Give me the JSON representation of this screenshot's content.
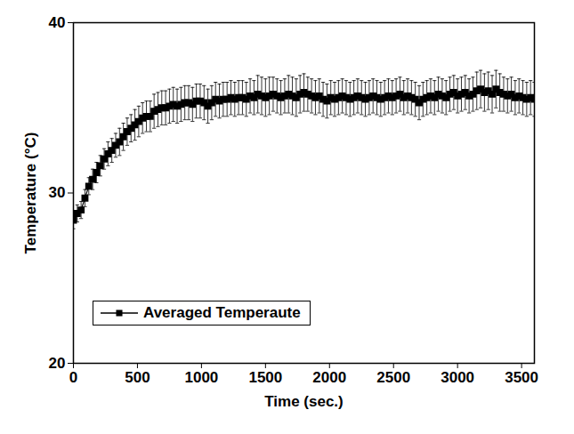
{
  "chart_data": {
    "type": "line",
    "x_label": "Time (sec.)",
    "y_label": "Temperature (°C)",
    "xlim": [
      0,
      3600
    ],
    "xticks": [
      0,
      500,
      1000,
      1500,
      2000,
      2500,
      3000,
      3500
    ],
    "ylim": [
      20,
      40
    ],
    "yticks": [
      20,
      30,
      40
    ],
    "grid": false,
    "legend": "lower left",
    "x": [
      0,
      30,
      60,
      90,
      120,
      150,
      180,
      210,
      240,
      270,
      300,
      330,
      360,
      390,
      420,
      450,
      480,
      510,
      540,
      570,
      600,
      630,
      660,
      690,
      720,
      750,
      780,
      810,
      840,
      870,
      900,
      930,
      960,
      990,
      1020,
      1050,
      1080,
      1110,
      1140,
      1170,
      1200,
      1230,
      1260,
      1290,
      1320,
      1350,
      1380,
      1410,
      1440,
      1470,
      1500,
      1530,
      1560,
      1590,
      1620,
      1650,
      1680,
      1710,
      1740,
      1770,
      1800,
      1830,
      1860,
      1890,
      1920,
      1950,
      1980,
      2010,
      2040,
      2070,
      2100,
      2130,
      2160,
      2190,
      2220,
      2250,
      2280,
      2310,
      2340,
      2370,
      2400,
      2430,
      2460,
      2490,
      2520,
      2550,
      2580,
      2610,
      2640,
      2670,
      2700,
      2730,
      2760,
      2790,
      2820,
      2850,
      2880,
      2910,
      2940,
      2970,
      3000,
      3030,
      3060,
      3090,
      3120,
      3150,
      3180,
      3210,
      3240,
      3270,
      3300,
      3330,
      3360,
      3390,
      3420,
      3450,
      3480,
      3510,
      3540,
      3570,
      3600
    ],
    "series": [
      {
        "name": "Averaged Temperaute",
        "color": "#000000",
        "marker": "square",
        "line_style": "solid",
        "values": [
          28.4,
          28.8,
          29.0,
          29.7,
          30.4,
          30.8,
          31.2,
          31.6,
          32.0,
          32.3,
          32.5,
          32.8,
          33.0,
          33.3,
          33.6,
          33.8,
          34.0,
          34.2,
          34.4,
          34.5,
          34.5,
          34.8,
          34.9,
          35.0,
          35.0,
          35.1,
          35.2,
          35.1,
          35.2,
          35.3,
          35.3,
          35.2,
          35.4,
          35.4,
          35.3,
          35.1,
          35.3,
          35.5,
          35.4,
          35.5,
          35.5,
          35.6,
          35.5,
          35.6,
          35.6,
          35.5,
          35.7,
          35.6,
          35.8,
          35.7,
          35.6,
          35.7,
          35.8,
          35.7,
          35.6,
          35.7,
          35.8,
          35.7,
          35.6,
          35.8,
          35.9,
          35.8,
          35.7,
          35.6,
          35.7,
          35.5,
          35.4,
          35.6,
          35.5,
          35.6,
          35.7,
          35.6,
          35.5,
          35.6,
          35.7,
          35.6,
          35.5,
          35.6,
          35.7,
          35.6,
          35.5,
          35.6,
          35.7,
          35.6,
          35.7,
          35.8,
          35.6,
          35.7,
          35.6,
          35.5,
          35.3,
          35.5,
          35.6,
          35.7,
          35.6,
          35.8,
          35.7,
          35.6,
          35.8,
          35.9,
          35.7,
          35.8,
          35.9,
          35.7,
          35.8,
          36.0,
          36.1,
          35.9,
          36.0,
          35.8,
          36.1,
          35.9,
          35.8,
          35.7,
          35.8,
          35.6,
          35.7,
          35.6,
          35.5,
          35.6,
          35.5
        ],
        "errors": [
          0.5,
          0.5,
          0.5,
          0.5,
          0.5,
          0.6,
          0.6,
          0.6,
          0.6,
          0.7,
          0.7,
          0.7,
          0.8,
          0.8,
          0.8,
          0.8,
          0.9,
          0.9,
          0.9,
          0.9,
          0.9,
          1.0,
          1.0,
          1.0,
          1.0,
          1.0,
          1.0,
          1.0,
          1.0,
          1.0,
          1.0,
          1.0,
          1.0,
          1.0,
          1.0,
          1.0,
          1.0,
          1.0,
          1.0,
          1.0,
          1.0,
          1.0,
          1.0,
          1.0,
          1.0,
          1.0,
          1.0,
          1.0,
          1.1,
          1.1,
          1.1,
          1.1,
          1.0,
          1.0,
          1.0,
          1.0,
          1.1,
          1.1,
          1.1,
          1.1,
          1.1,
          1.0,
          1.0,
          1.0,
          1.0,
          1.0,
          1.0,
          1.0,
          1.0,
          1.0,
          1.0,
          1.0,
          1.0,
          1.0,
          1.0,
          1.0,
          1.0,
          1.0,
          1.0,
          1.0,
          1.0,
          1.0,
          1.0,
          1.0,
          1.0,
          1.0,
          1.0,
          1.0,
          1.0,
          1.0,
          1.0,
          1.0,
          1.0,
          1.0,
          1.0,
          1.0,
          1.0,
          1.0,
          1.0,
          1.0,
          1.0,
          1.0,
          1.0,
          1.0,
          1.0,
          1.1,
          1.1,
          1.1,
          1.1,
          1.1,
          1.1,
          1.1,
          1.0,
          1.0,
          1.0,
          1.0,
          1.0,
          1.0,
          1.0,
          1.0,
          1.0
        ]
      }
    ]
  }
}
